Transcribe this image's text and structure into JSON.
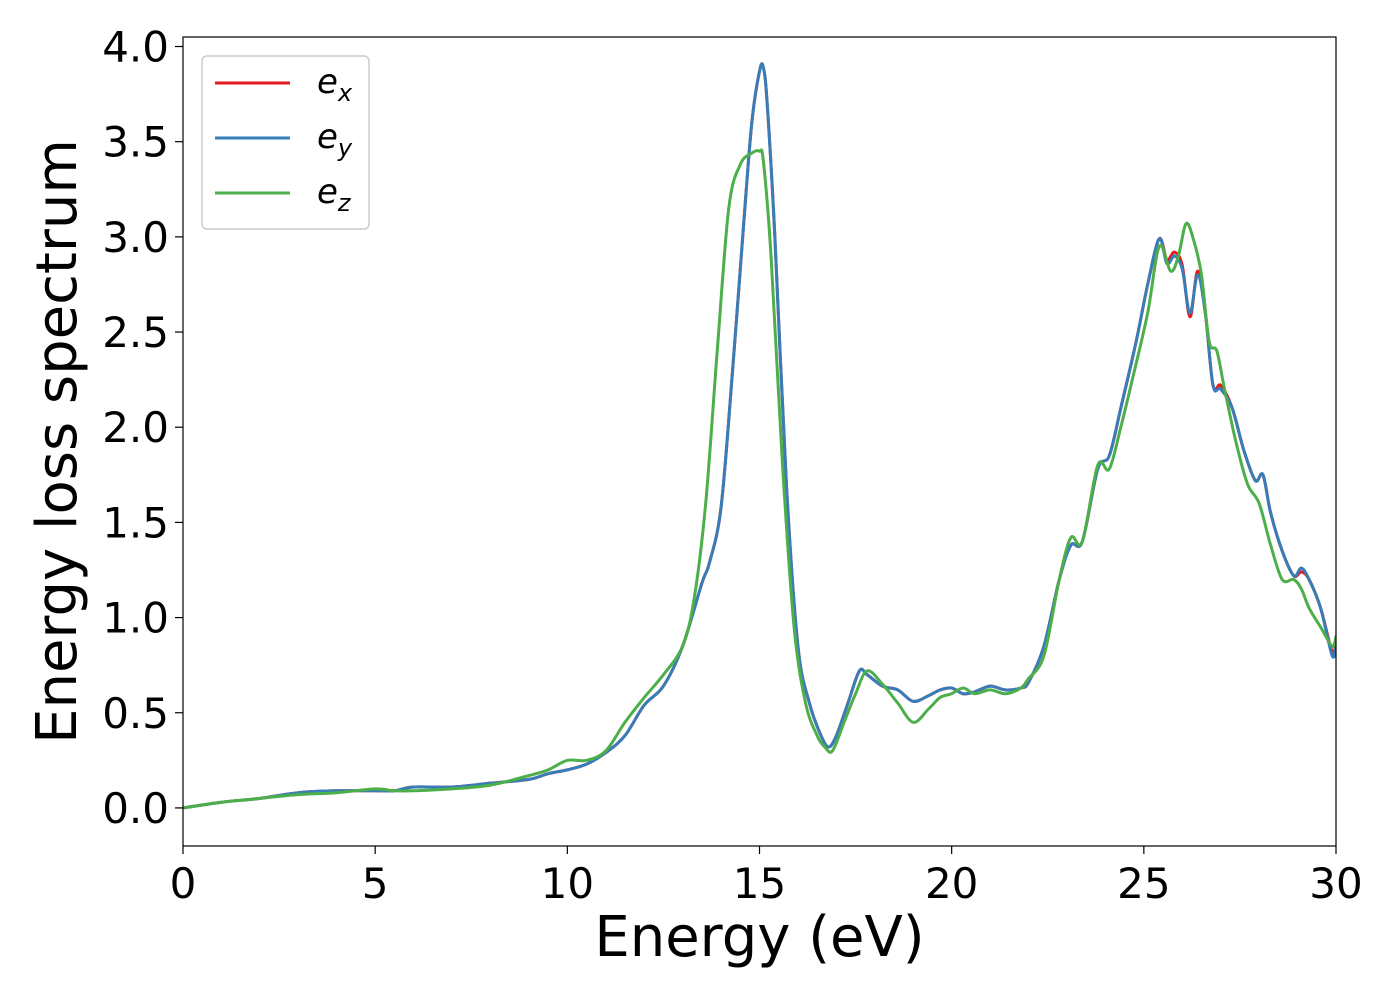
{
  "chart_data": {
    "type": "line",
    "xlabel": "Energy (eV)",
    "ylabel": "Energy loss spectrum",
    "xlim": [
      0,
      30
    ],
    "ylim": [
      -0.2,
      4.05
    ],
    "xticks": [
      "0",
      "5",
      "10",
      "15",
      "20",
      "25",
      "30"
    ],
    "yticks": [
      "0.0",
      "0.5",
      "1.0",
      "1.5",
      "2.0",
      "2.5",
      "3.0",
      "3.5",
      "4.0"
    ],
    "grid": false,
    "legend_position": "top-left",
    "series": [
      {
        "name": "e_x",
        "label_base": "e",
        "label_sub": "x",
        "color": "#e41a1c",
        "x": [
          0,
          1,
          2,
          3,
          4,
          5,
          5.5,
          6,
          7,
          8,
          9,
          9.5,
          10,
          10.5,
          11,
          11.5,
          12,
          12.5,
          13,
          13.5,
          13.7,
          14,
          14.3,
          14.6,
          14.8,
          15,
          15.1,
          15.2,
          15.4,
          15.7,
          16,
          16.3,
          16.6,
          16.8,
          17,
          17.3,
          17.6,
          17.8,
          18.2,
          18.6,
          19,
          19.4,
          19.7,
          20,
          20.3,
          20.6,
          21,
          21.4,
          21.8,
          22,
          22.4,
          22.8,
          23.1,
          23.4,
          23.8,
          24.1,
          24.4,
          24.8,
          25.1,
          25.4,
          25.6,
          25.8,
          26,
          26.2,
          26.4,
          26.6,
          26.8,
          27,
          27.3,
          27.6,
          27.9,
          28.1,
          28.3,
          28.6,
          28.9,
          29.1,
          29.3,
          29.6,
          29.9,
          30
        ],
        "y": [
          0,
          0.03,
          0.05,
          0.08,
          0.09,
          0.09,
          0.09,
          0.11,
          0.11,
          0.13,
          0.15,
          0.18,
          0.2,
          0.23,
          0.29,
          0.38,
          0.54,
          0.64,
          0.85,
          1.18,
          1.29,
          1.58,
          2.3,
          3.1,
          3.6,
          3.87,
          3.89,
          3.7,
          3.0,
          1.7,
          0.85,
          0.55,
          0.38,
          0.32,
          0.38,
          0.55,
          0.72,
          0.7,
          0.64,
          0.62,
          0.56,
          0.59,
          0.62,
          0.63,
          0.6,
          0.61,
          0.64,
          0.62,
          0.63,
          0.66,
          0.85,
          1.2,
          1.38,
          1.4,
          1.78,
          1.85,
          2.1,
          2.45,
          2.75,
          2.99,
          2.88,
          2.92,
          2.85,
          2.58,
          2.82,
          2.6,
          2.22,
          2.22,
          2.1,
          1.88,
          1.72,
          1.75,
          1.55,
          1.35,
          1.22,
          1.24,
          1.2,
          1.05,
          0.82,
          0.87
        ]
      },
      {
        "name": "e_y",
        "label_base": "e",
        "label_sub": "y",
        "color": "#377eb8",
        "x": [
          0,
          1,
          2,
          3,
          4,
          5,
          5.5,
          6,
          7,
          8,
          9,
          9.5,
          10,
          10.5,
          11,
          11.5,
          12,
          12.5,
          13,
          13.5,
          13.7,
          14,
          14.3,
          14.6,
          14.8,
          15,
          15.1,
          15.2,
          15.4,
          15.7,
          16,
          16.3,
          16.6,
          16.8,
          17,
          17.3,
          17.6,
          17.8,
          18.2,
          18.6,
          19,
          19.4,
          19.7,
          20,
          20.3,
          20.6,
          21,
          21.4,
          21.8,
          22,
          22.4,
          22.8,
          23.1,
          23.4,
          23.8,
          24.1,
          24.4,
          24.8,
          25.1,
          25.4,
          25.6,
          25.8,
          26,
          26.2,
          26.4,
          26.6,
          26.8,
          27,
          27.3,
          27.6,
          27.9,
          28.1,
          28.3,
          28.6,
          28.9,
          29.1,
          29.3,
          29.6,
          29.9,
          30
        ],
        "y": [
          0,
          0.03,
          0.05,
          0.08,
          0.09,
          0.09,
          0.09,
          0.11,
          0.11,
          0.13,
          0.15,
          0.18,
          0.2,
          0.23,
          0.29,
          0.38,
          0.54,
          0.64,
          0.85,
          1.18,
          1.29,
          1.58,
          2.3,
          3.1,
          3.6,
          3.87,
          3.89,
          3.7,
          3.0,
          1.7,
          0.85,
          0.55,
          0.38,
          0.32,
          0.38,
          0.55,
          0.72,
          0.7,
          0.64,
          0.62,
          0.56,
          0.59,
          0.62,
          0.63,
          0.6,
          0.61,
          0.64,
          0.62,
          0.63,
          0.66,
          0.85,
          1.2,
          1.38,
          1.4,
          1.78,
          1.85,
          2.1,
          2.45,
          2.75,
          2.99,
          2.86,
          2.9,
          2.83,
          2.6,
          2.8,
          2.6,
          2.22,
          2.2,
          2.1,
          1.88,
          1.72,
          1.75,
          1.55,
          1.35,
          1.22,
          1.26,
          1.2,
          1.05,
          0.8,
          0.85
        ]
      },
      {
        "name": "e_z",
        "label_base": "e",
        "label_sub": "z",
        "color": "#4daf4a",
        "x": [
          0,
          1,
          2,
          3,
          4,
          5,
          5.5,
          6,
          7,
          8,
          9,
          9.5,
          10,
          10.5,
          11,
          11.5,
          12,
          12.5,
          13,
          13.3,
          13.6,
          13.9,
          14.2,
          14.5,
          14.8,
          15,
          15.1,
          15.3,
          15.6,
          15.9,
          16.2,
          16.5,
          16.7,
          16.9,
          17.2,
          17.5,
          17.8,
          18.2,
          18.6,
          19,
          19.4,
          19.7,
          20,
          20.3,
          20.6,
          21,
          21.4,
          21.8,
          22,
          22.4,
          22.8,
          23.1,
          23.4,
          23.8,
          24.1,
          24.4,
          24.7,
          25.1,
          25.4,
          25.7,
          25.9,
          26.1,
          26.3,
          26.5,
          26.7,
          26.9,
          27.1,
          27.4,
          27.7,
          28,
          28.3,
          28.6,
          28.9,
          29.1,
          29.3,
          29.6,
          29.9,
          30
        ],
        "y": [
          0,
          0.03,
          0.05,
          0.07,
          0.08,
          0.1,
          0.09,
          0.09,
          0.1,
          0.12,
          0.17,
          0.2,
          0.25,
          0.25,
          0.3,
          0.45,
          0.58,
          0.7,
          0.85,
          1.1,
          1.6,
          2.4,
          3.15,
          3.38,
          3.44,
          3.45,
          3.4,
          2.9,
          1.8,
          0.95,
          0.55,
          0.38,
          0.32,
          0.3,
          0.45,
          0.6,
          0.72,
          0.65,
          0.55,
          0.45,
          0.52,
          0.58,
          0.6,
          0.63,
          0.6,
          0.62,
          0.6,
          0.63,
          0.68,
          0.8,
          1.2,
          1.42,
          1.4,
          1.8,
          1.78,
          2.0,
          2.25,
          2.6,
          2.95,
          2.82,
          2.9,
          3.07,
          2.98,
          2.8,
          2.45,
          2.4,
          2.2,
          1.92,
          1.7,
          1.6,
          1.38,
          1.2,
          1.2,
          1.15,
          1.05,
          0.95,
          0.85,
          0.9
        ]
      }
    ]
  }
}
